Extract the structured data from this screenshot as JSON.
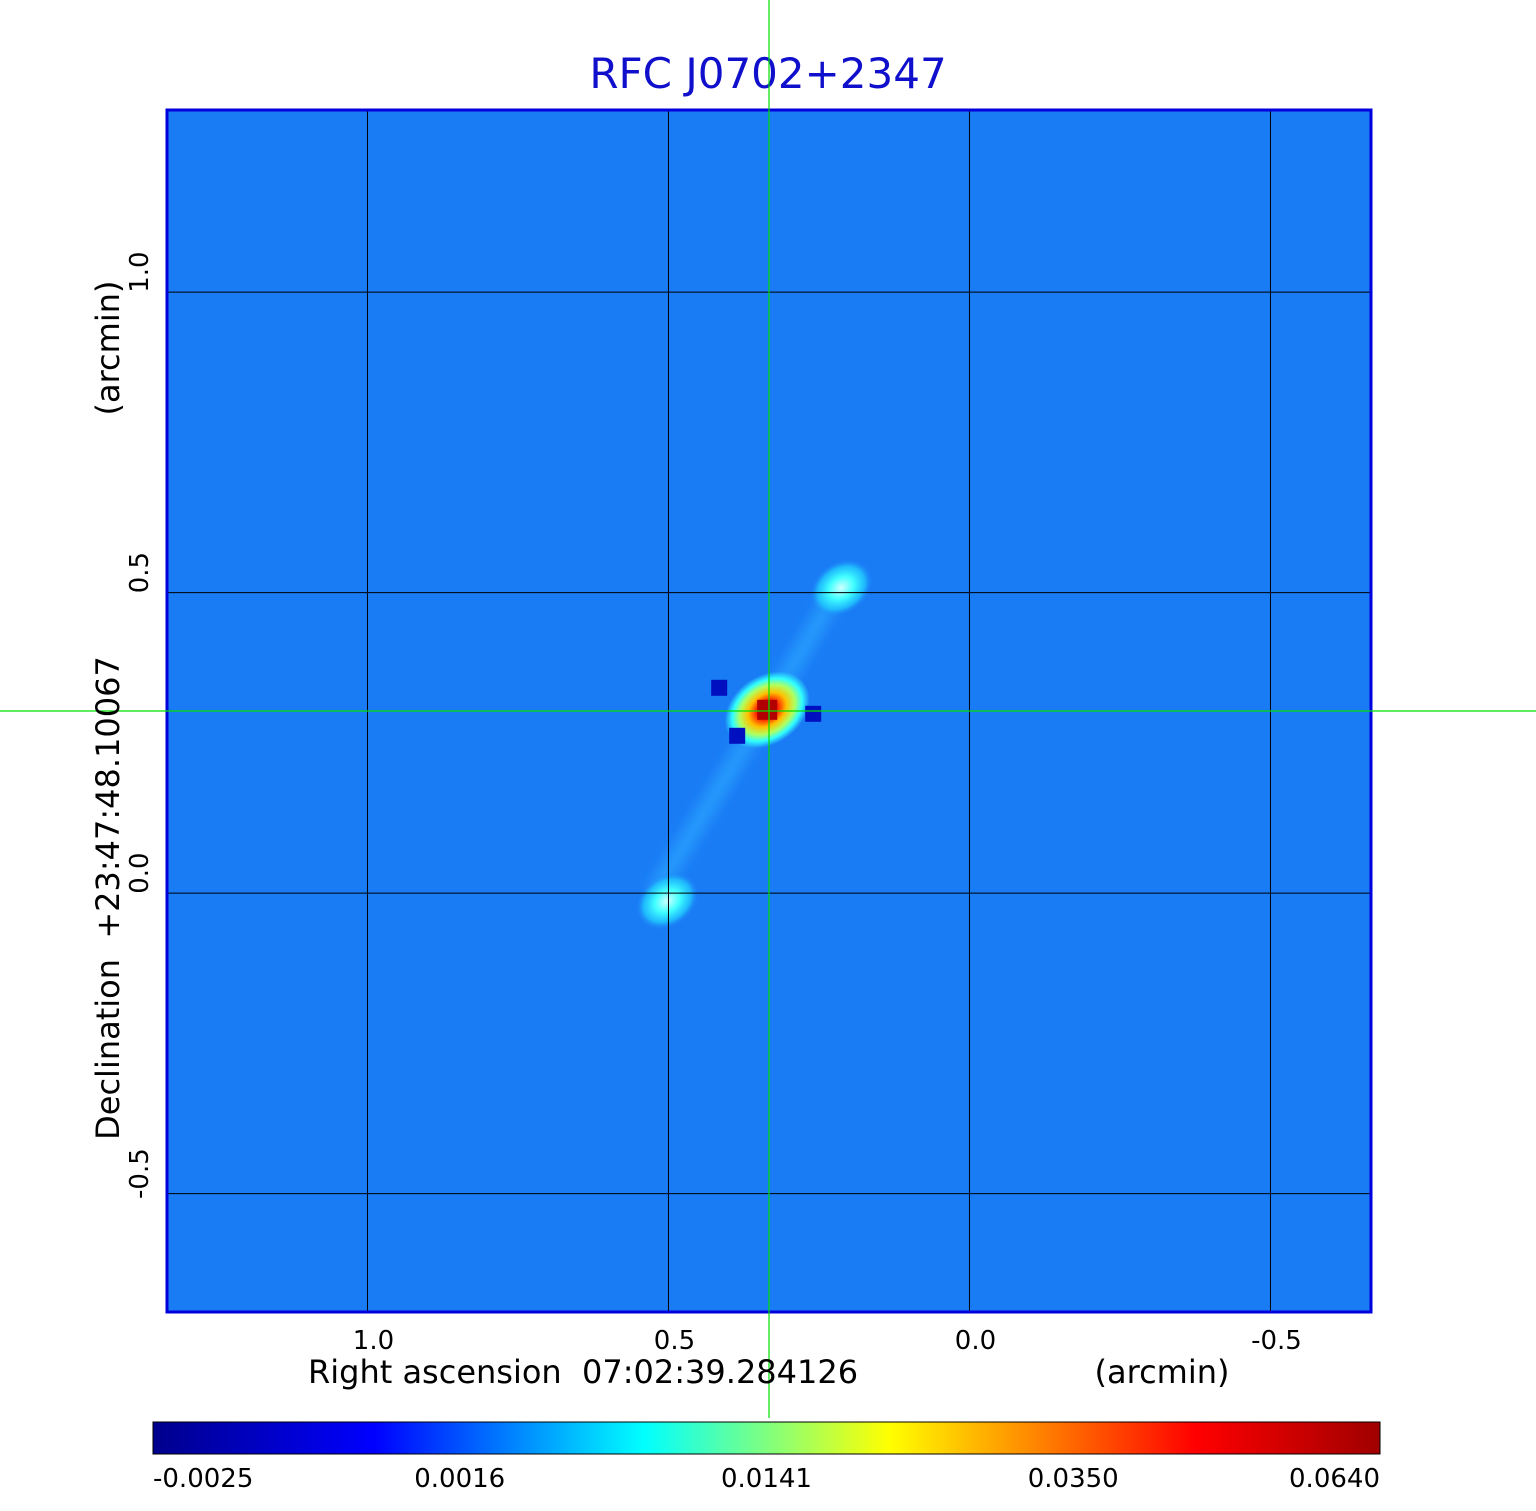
{
  "chart_data": {
    "type": "heatmap",
    "title": "RFC J0702+2347",
    "xlabel": "Right ascension  07:02:39.284126",
    "xunit": "(arcmin)",
    "ylabel": "Declination  +23:47:48.10067",
    "yunit": "(arcmin)",
    "x_range": [
      1.333,
      -0.667
    ],
    "y_range": [
      -0.697,
      1.303
    ],
    "x_ticks": [
      {
        "value": 1.0,
        "label": "1.0"
      },
      {
        "value": 0.5,
        "label": "0.5"
      },
      {
        "value": 0.0,
        "label": "0.0"
      },
      {
        "value": -0.5,
        "label": "-0.5"
      }
    ],
    "y_ticks": [
      {
        "value": 1.0,
        "label": "1.0"
      },
      {
        "value": 0.5,
        "label": "0.5"
      },
      {
        "value": 0.0,
        "label": "0.0"
      },
      {
        "value": -0.5,
        "label": "-0.5"
      }
    ],
    "grid": true,
    "crosshair": {
      "x": 0.333,
      "y": 0.303,
      "color": "#00e000"
    },
    "background_color": "#1a7cf5",
    "sources": [
      {
        "name": "core",
        "x": 0.336,
        "y": 0.305,
        "peak": 0.064
      },
      {
        "name": "jet-ne",
        "x": 0.213,
        "y": 0.508,
        "peak": 0.009
      },
      {
        "name": "jet-sw",
        "x": 0.502,
        "y": -0.013,
        "peak": 0.008
      }
    ],
    "colorbar": {
      "colors": [
        "#00008c",
        "#0000ff",
        "#00ffff",
        "#ffff00",
        "#ff0000",
        "#a00000"
      ],
      "tick_labels": [
        "-0.0025",
        "0.0016",
        "0.0141",
        "0.0350",
        "0.0640"
      ]
    }
  }
}
